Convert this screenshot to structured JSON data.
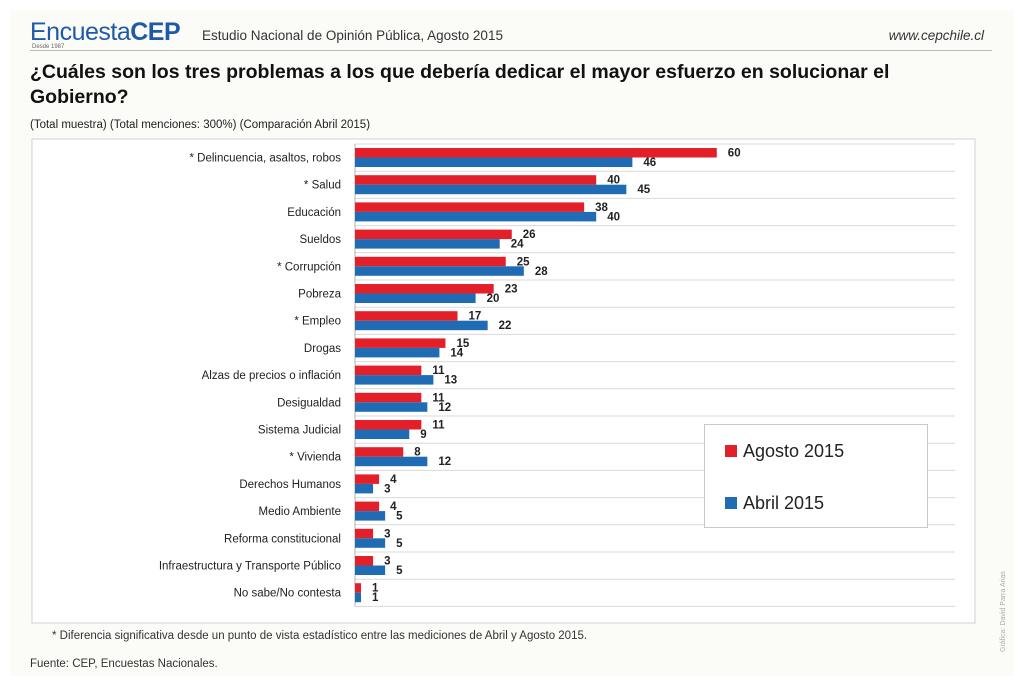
{
  "header": {
    "logo_light": "Encuesta",
    "logo_bold": "CEP",
    "logo_sub": "Desde 1987",
    "study": "Estudio Nacional de Opinión Pública, Agosto 2015",
    "site": "www.cepchile.cl"
  },
  "question": "¿Cuáles son los tres problemas a los que debería dedicar el mayor esfuerzo en solucionar el Gobierno?",
  "subtitle": "(Total muestra) (Total menciones: 300%) (Comparación Abril 2015)",
  "unit_badge": "%",
  "footnote": "* Diferencia significativa desde un punto de vista estadístico entre las mediciones de Abril y Agosto 2015.",
  "source": "Fuente: CEP, Encuestas Nacionales.",
  "credit": "Gráfica: David Parra Arias",
  "colors": {
    "agosto": "#e3202a",
    "abril": "#1f6cb5",
    "grid": "#d9d9d9"
  },
  "chart_data": {
    "type": "bar",
    "orientation": "horizontal",
    "categories": [
      "* Delincuencia, asaltos, robos",
      "* Salud",
      "Educación",
      "Sueldos",
      "* Corrupción",
      "Pobreza",
      "* Empleo",
      "Drogas",
      "Alzas de precios o inflación",
      "Desigualdad",
      "Sistema Judicial",
      "* Vivienda",
      "Derechos Humanos",
      "Medio Ambiente",
      "Reforma constitucional",
      "Infraestructura y Transporte Público",
      "No sabe/No contesta"
    ],
    "series": [
      {
        "name": "Agosto 2015",
        "values": [
          60,
          40,
          38,
          26,
          25,
          23,
          17,
          15,
          11,
          11,
          11,
          8,
          4,
          4,
          3,
          3,
          1
        ]
      },
      {
        "name": "Abril 2015",
        "values": [
          46,
          45,
          40,
          24,
          28,
          20,
          22,
          14,
          13,
          12,
          9,
          12,
          3,
          5,
          5,
          5,
          1
        ]
      }
    ],
    "xlim": [
      0,
      100
    ],
    "grid": true,
    "legend_position": "bottom-right",
    "data_labels": true
  }
}
